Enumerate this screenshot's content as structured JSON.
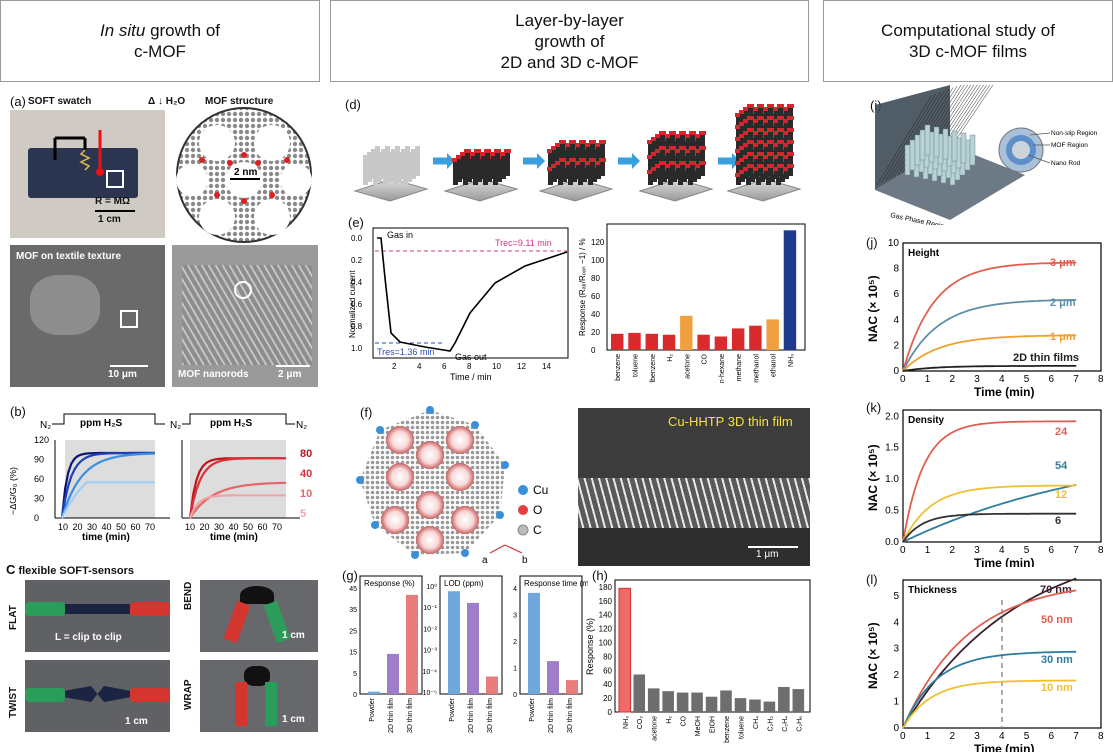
{
  "columns": {
    "c1": {
      "l1a": "In situ",
      "l1b": " growth of",
      "l2": "c-MOF"
    },
    "c2": {
      "l1": "Layer-by-layer",
      "l2": "growth of",
      "l3": "2D and 3D c-MOF"
    },
    "c3": {
      "l1": "Computational study of",
      "l2": "3D c-MOF films"
    }
  },
  "panel_a": {
    "letter": "(a)",
    "swatch": "SOFT swatch",
    "heat": "Δ",
    "water": "H₂O",
    "structure": "MOF structure",
    "resistance": "R = MΩ",
    "scale1": "1 cm",
    "pore": "2 nm",
    "textile": "MOF on textile texture",
    "scale2": "10 μm",
    "nanorods": "MOF nanorods",
    "scale3": "2 μm"
  },
  "panel_b": {
    "letter": "(b)",
    "n2": "N₂",
    "ppm_label": "ppm H₂S",
    "ylabel": "−ΔG/G₀ (%)",
    "xlabel": "time (min)",
    "yticks": [
      "0",
      "30",
      "60",
      "90",
      "120"
    ],
    "xticks": [
      "10",
      "20",
      "30",
      "40",
      "50",
      "60",
      "70"
    ],
    "ppm_levels": [
      "80",
      "40",
      "10",
      "5"
    ],
    "colors": {
      "80": "#c3141c",
      "40": "#d8313a",
      "10": "#e8646a",
      "5": "#f1a4a7"
    }
  },
  "panel_c": {
    "letter": "C",
    "title": "flexible SOFT-sensors",
    "flat": "FLAT",
    "bend": "BEND",
    "twist": "TWIST",
    "wrap": "WRAP",
    "clip": "L = clip to clip",
    "scale": "1 cm"
  },
  "panel_d": {
    "letter": "(d)"
  },
  "panel_e": {
    "letter": "(e)",
    "gas_in": "Gas in",
    "gas_out": "Gas out",
    "trec": "Trec=9.11 min",
    "tres": "Tres=1.36 min",
    "ylabel": "Normalized current",
    "xlabel": "Time / min",
    "yticks": [
      "0.0",
      "0.2",
      "0.4",
      "0.6",
      "0.8",
      "1.0"
    ],
    "xticks": [
      "2",
      "4",
      "6",
      "8",
      "10",
      "12",
      "14"
    ],
    "bar_ylabel": "Response (Rₐᵢᵣ/Rₒₐₛ −1) / %",
    "bar_yticks": [
      "0",
      "20",
      "40",
      "60",
      "80",
      "100",
      "120"
    ]
  },
  "panel_f": {
    "letter": "(f)",
    "legend": [
      "Cu",
      "O",
      "C"
    ],
    "axis_a": "a",
    "axis_b": "b",
    "sem_title": "Cu-HHTP 3D thin film",
    "sem_scale": "1 μm"
  },
  "panel_g": {
    "letter": "(g)",
    "sub1": {
      "title": "Response (%)",
      "yticks": [
        "0",
        "5",
        "15",
        "25",
        "35",
        "45"
      ]
    },
    "sub2": {
      "title": "LOD (ppm)",
      "yticks": [
        "10⁰",
        "10⁻¹",
        "10⁻²",
        "10⁻³",
        "10⁻⁴",
        "10⁻⁵"
      ]
    },
    "sub3": {
      "title": "Response time (min)",
      "yticks": [
        "0",
        "1",
        "2",
        "3",
        "4"
      ]
    },
    "categories": [
      "Powder",
      "2D thin film",
      "3D thin film"
    ]
  },
  "panel_h": {
    "letter": "(h)",
    "ylabel": "Response (%)",
    "yticks": [
      "0",
      "20",
      "40",
      "60",
      "80",
      "100",
      "120",
      "140",
      "160",
      "180"
    ]
  },
  "panel_i": {
    "letter": "(i)",
    "nonslip": "Non-slip Region",
    "mof": "MOF Region",
    "rod": "Nano Rod",
    "gas": "Gas Phase Region"
  },
  "panel_j": {
    "letter": "(j)",
    "title": "Height",
    "ylabel": "NAC (× 10⁵)",
    "xlabel": "Time (min)",
    "yticks": [
      "0",
      "2",
      "4",
      "6",
      "8",
      "10"
    ],
    "xticks": [
      "0",
      "1",
      "2",
      "3",
      "4",
      "5",
      "6",
      "7",
      "8"
    ],
    "labels": [
      "3 μm",
      "2 μm",
      "1 μm",
      "2D thin films"
    ]
  },
  "panel_k": {
    "letter": "(k)",
    "title": "Density",
    "ylabel": "NAC (× 10⁵)",
    "xlabel": "Time (min)",
    "yticks": [
      "0.0",
      "0.5",
      "1.0",
      "1.5",
      "2.0"
    ],
    "xticks": [
      "0",
      "1",
      "2",
      "3",
      "4",
      "5",
      "6",
      "7",
      "8"
    ],
    "labels": [
      "24",
      "54",
      "12",
      "6"
    ]
  },
  "panel_l": {
    "letter": "(l)",
    "title": "Thickness",
    "ylabel": "NAC (× 10⁵)",
    "xlabel": "Time (min)",
    "yticks": [
      "0",
      "1",
      "2",
      "3",
      "4",
      "5"
    ],
    "xticks": [
      "0",
      "1",
      "2",
      "3",
      "4",
      "5",
      "6",
      "7",
      "8"
    ],
    "labels": [
      "70 nm",
      "50 nm",
      "30 nm",
      "10 nm"
    ]
  },
  "chart_data": [
    {
      "type": "bar",
      "id": "e_bar",
      "categories": [
        "benzene",
        "toluene",
        "ethylbenzene",
        "H₂",
        "acetone",
        "CO",
        "n-hexane",
        "methane",
        "methanol",
        "ethanol",
        "NH₃"
      ],
      "values": [
        18,
        19,
        18,
        17,
        38,
        17,
        15,
        24,
        27,
        34,
        133
      ],
      "colors": [
        "#d92b2b",
        "#d92b2b",
        "#d92b2b",
        "#d92b2b",
        "#f0a040",
        "#d92b2b",
        "#d92b2b",
        "#d92b2b",
        "#d92b2b",
        "#f0a040",
        "#1f3a8c"
      ],
      "ylim": [
        0,
        140
      ]
    },
    {
      "type": "bar",
      "id": "h_bar",
      "categories": [
        "NH₃",
        "CO₂",
        "acetone",
        "H₂",
        "CO",
        "MeOH",
        "EtOH",
        "benzene",
        "toluene",
        "CH₄",
        "C₂H₂",
        "C₂H₄",
        "C₂H₆"
      ],
      "values": [
        178,
        54,
        34,
        30,
        28,
        28,
        22,
        31,
        20,
        18,
        15,
        36,
        33
      ],
      "ylim": [
        0,
        190
      ]
    },
    {
      "type": "bar",
      "id": "g1",
      "categories": [
        "Powder",
        "2D thin film",
        "3D thin film"
      ],
      "values": [
        1,
        17,
        42
      ],
      "colors": [
        "#6fa8dc",
        "#9e7ec9",
        "#e87c7c"
      ],
      "ylim": [
        0,
        45
      ]
    },
    {
      "type": "bar",
      "id": "g2",
      "log": true,
      "categories": [
        "Powder",
        "2D thin film",
        "3D thin film"
      ],
      "values": [
        2,
        0.5,
        8e-05
      ],
      "colors": [
        "#6fa8dc",
        "#9e7ec9",
        "#e87c7c"
      ],
      "ylim": [
        1e-05,
        3
      ]
    },
    {
      "type": "bar",
      "id": "g3",
      "categories": [
        "Powder",
        "2D thin film",
        "3D thin film"
      ],
      "values": [
        4.0,
        1.3,
        0.55
      ],
      "colors": [
        "#6fa8dc",
        "#9e7ec9",
        "#e87c7c"
      ],
      "ylim": [
        0,
        4.2
      ]
    },
    {
      "type": "line",
      "id": "j",
      "series": [
        {
          "name": "3 μm",
          "plateau": 8.5,
          "rate": 0.8,
          "color": "#e06050"
        },
        {
          "name": "2 μm",
          "plateau": 5.6,
          "rate": 0.7,
          "color": "#5f8fa8"
        },
        {
          "name": "1 μm",
          "plateau": 2.8,
          "rate": 0.7,
          "color": "#f0a030"
        },
        {
          "name": "2D thin films",
          "plateau": 0.4,
          "rate": 0.8,
          "color": "#222222"
        }
      ],
      "xlim": [
        0,
        8
      ],
      "ylim": [
        0,
        10
      ]
    },
    {
      "type": "line",
      "id": "k",
      "series": [
        {
          "name": "24",
          "plateau": 1.92,
          "rate": 1.2,
          "color": "#e06050"
        },
        {
          "name": "54",
          "plateau": 1.6,
          "rate": 0.12,
          "color": "#2e7d9c"
        },
        {
          "name": "12",
          "plateau": 0.9,
          "rate": 0.9,
          "color": "#f0c030"
        },
        {
          "name": "6",
          "plateau": 0.45,
          "rate": 1.3,
          "color": "#333333"
        }
      ],
      "xlim": [
        0,
        8
      ],
      "ylim": [
        0,
        2.1
      ]
    },
    {
      "type": "line",
      "id": "l",
      "series": [
        {
          "name": "70 nm",
          "plateau": 7.2,
          "rate": 0.22,
          "color": "#3a2030"
        },
        {
          "name": "50 nm",
          "plateau": 5.6,
          "rate": 0.38,
          "color": "#e06050"
        },
        {
          "name": "30 nm",
          "plateau": 2.9,
          "rate": 0.75,
          "color": "#2e7d9c"
        },
        {
          "name": "10 nm",
          "plateau": 1.8,
          "rate": 0.9,
          "color": "#f0c030"
        }
      ],
      "xlim": [
        0,
        8
      ],
      "ylim": [
        0,
        5.6
      ],
      "vline": 4
    }
  ]
}
